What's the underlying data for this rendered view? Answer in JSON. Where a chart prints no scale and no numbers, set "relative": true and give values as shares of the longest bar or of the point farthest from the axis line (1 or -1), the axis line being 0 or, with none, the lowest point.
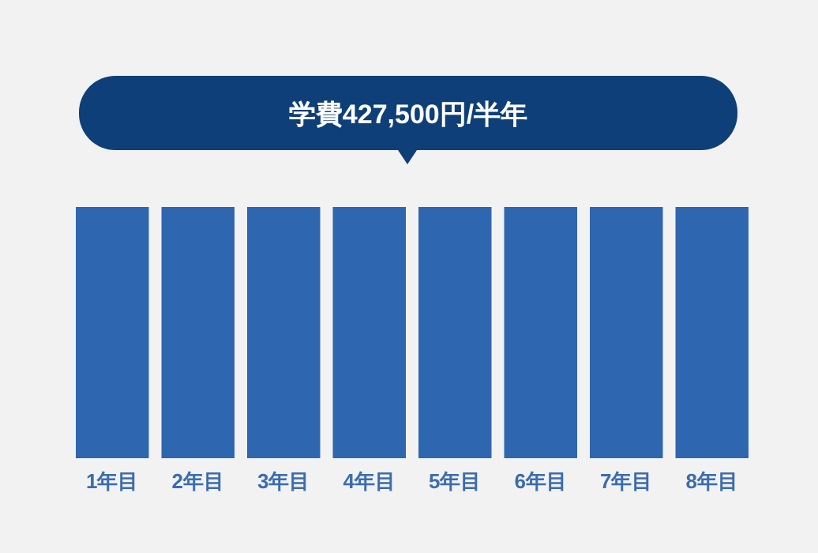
{
  "chart_data": {
    "type": "bar",
    "title": "学費427,500円/半年",
    "relative": true,
    "color": "#2e66b0",
    "categories": [
      "1年目",
      "2年目",
      "3年目",
      "4年目",
      "5年目",
      "6年目",
      "7年目",
      "8年目"
    ],
    "values": [
      1,
      1,
      1,
      1,
      1,
      1,
      1,
      1
    ]
  }
}
